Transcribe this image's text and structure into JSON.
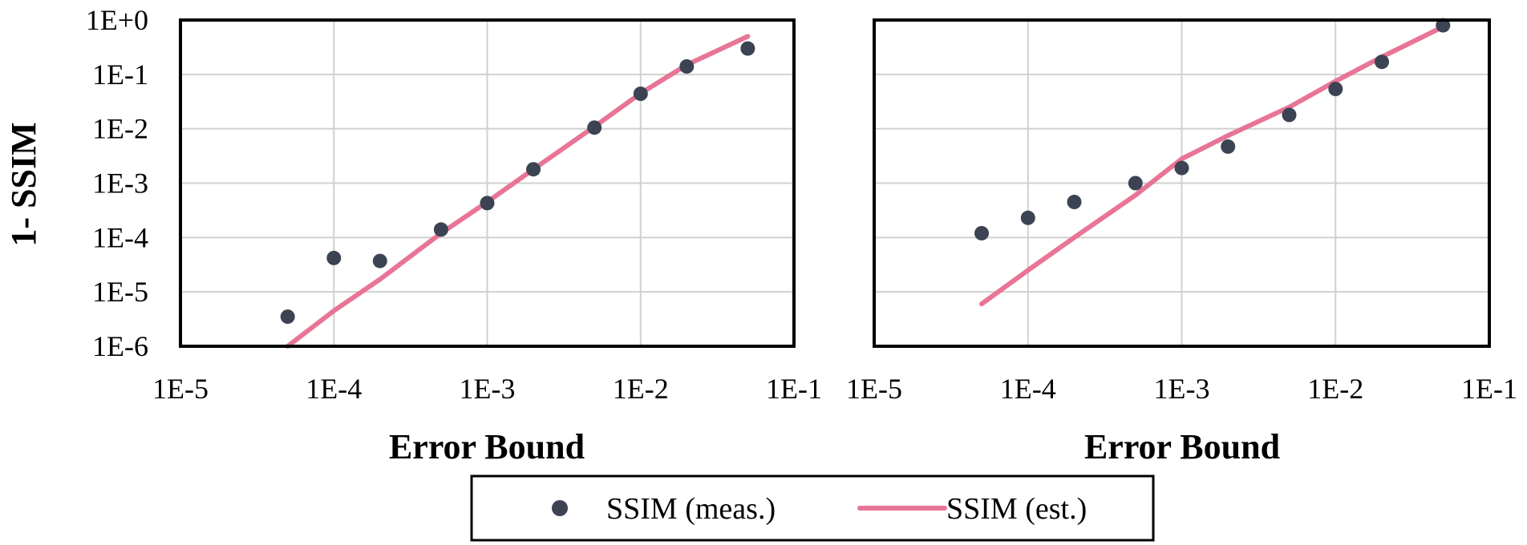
{
  "colors": {
    "measured": "#3c4453",
    "estimated": "#e87596",
    "grid": "#d0d0d0",
    "frame": "#000000"
  },
  "y_axis_title": "1- SSIM",
  "legend": {
    "measured_label": "SSIM (meas.)",
    "estimated_label": "SSIM (est.)",
    "measured_icon": "circle-marker-icon",
    "estimated_icon": "line-marker-icon"
  },
  "chart_data": [
    {
      "type": "scatter",
      "xlabel": "Error Bound",
      "ylabel": "1- SSIM",
      "xscale": "log",
      "yscale": "log",
      "xlim": [
        1e-05,
        0.1
      ],
      "ylim": [
        1e-06,
        1
      ],
      "x_ticks": [
        "1E-5",
        "1E-4",
        "1E-3",
        "1E-2",
        "1E-1"
      ],
      "y_ticks": [
        "1E-6",
        "1E-5",
        "1E-4",
        "1E-3",
        "1E-2",
        "1E-1",
        "1E+0"
      ],
      "grid": true,
      "series": [
        {
          "name": "SSIM (meas.)",
          "kind": "points",
          "x": [
            5e-05,
            0.0001,
            0.0002,
            0.0005,
            0.001,
            0.002,
            0.005,
            0.01,
            0.02,
            0.05
          ],
          "y": [
            3.5e-06,
            4.2e-05,
            3.7e-05,
            0.00014,
            0.00043,
            0.0018,
            0.0105,
            0.044,
            0.14,
            0.3
          ]
        },
        {
          "name": "SSIM (est.)",
          "kind": "line",
          "x": [
            5e-05,
            0.0001,
            0.0002,
            0.0005,
            0.001,
            0.002,
            0.005,
            0.01,
            0.02,
            0.05
          ],
          "y": [
            1e-06,
            4.5e-06,
            1.7e-05,
            0.00012,
            0.00045,
            0.0018,
            0.011,
            0.045,
            0.15,
            0.5
          ]
        }
      ]
    },
    {
      "type": "scatter",
      "xlabel": "Error Bound",
      "ylabel": "",
      "xscale": "log",
      "yscale": "log",
      "xlim": [
        1e-05,
        0.1
      ],
      "ylim": [
        1e-06,
        1
      ],
      "x_ticks": [
        "1E-5",
        "1E-4",
        "1E-3",
        "1E-2",
        "1E-1"
      ],
      "y_ticks": [],
      "grid": true,
      "series": [
        {
          "name": "SSIM (meas.)",
          "kind": "points",
          "x": [
            5e-05,
            0.0001,
            0.0002,
            0.0005,
            0.001,
            0.002,
            0.005,
            0.01,
            0.02,
            0.05
          ],
          "y": [
            0.00012,
            0.00023,
            0.00045,
            0.001,
            0.0019,
            0.0047,
            0.018,
            0.054,
            0.17,
            0.8
          ]
        },
        {
          "name": "SSIM (est.)",
          "kind": "line",
          "x": [
            5e-05,
            0.0001,
            0.0002,
            0.0005,
            0.001,
            0.002,
            0.005,
            0.01,
            0.02,
            0.05
          ],
          "y": [
            6e-06,
            2.5e-05,
            0.0001,
            0.0006,
            0.0028,
            0.0075,
            0.025,
            0.075,
            0.21,
            0.75
          ]
        }
      ]
    }
  ]
}
